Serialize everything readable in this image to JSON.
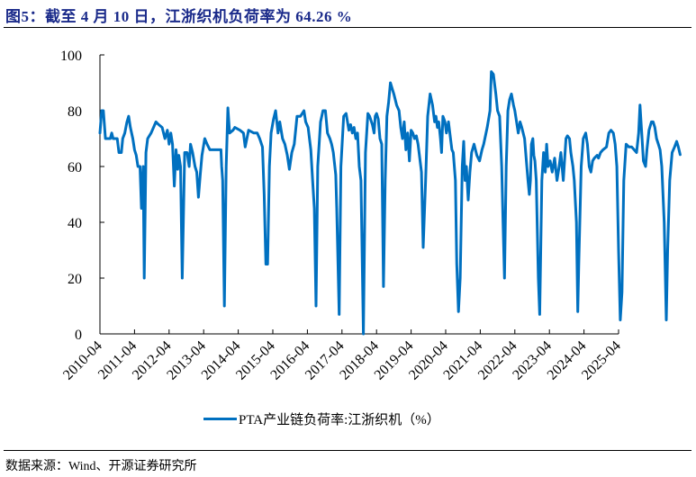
{
  "header": {
    "title": "图5：截至 4 月 10 日，江浙织机负荷率为 64.26 %"
  },
  "footer": {
    "source": "数据来源：Wind、开源证券研究所"
  },
  "legend": {
    "label": "PTA产业链负荷率:江浙织机（%）",
    "color": "#0070C0"
  },
  "chart_data": {
    "type": "line",
    "title": "截至 4 月 10 日，江浙织机负荷率为 64.26 %",
    "xlabel": "",
    "ylabel": "",
    "ylim": [
      0,
      100
    ],
    "yticks": [
      0,
      20,
      40,
      60,
      80,
      100
    ],
    "xticks": [
      "2010-04",
      "2011-04",
      "2012-04",
      "2013-04",
      "2014-04",
      "2015-04",
      "2016-04",
      "2017-04",
      "2018-04",
      "2019-04",
      "2020-04",
      "2021-04",
      "2022-04",
      "2023-04",
      "2024-04",
      "2025-04"
    ],
    "grid": false,
    "legend_position": "bottom",
    "series": [
      {
        "name": "PTA产业链负荷率:江浙织机（%）",
        "color": "#0070C0",
        "x_unit": "years since 2010-04",
        "points": [
          [
            0.0,
            72
          ],
          [
            0.05,
            80
          ],
          [
            0.1,
            80
          ],
          [
            0.16,
            70
          ],
          [
            0.3,
            70
          ],
          [
            0.34,
            72
          ],
          [
            0.38,
            70
          ],
          [
            0.5,
            70
          ],
          [
            0.55,
            65
          ],
          [
            0.62,
            65
          ],
          [
            0.66,
            70
          ],
          [
            0.72,
            72
          ],
          [
            0.78,
            76
          ],
          [
            0.83,
            78
          ],
          [
            0.88,
            74
          ],
          [
            0.95,
            70
          ],
          [
            1.0,
            66
          ],
          [
            1.05,
            64
          ],
          [
            1.1,
            60
          ],
          [
            1.16,
            60
          ],
          [
            1.2,
            45
          ],
          [
            1.25,
            60
          ],
          [
            1.28,
            20
          ],
          [
            1.33,
            65
          ],
          [
            1.38,
            70
          ],
          [
            1.48,
            72
          ],
          [
            1.55,
            74
          ],
          [
            1.62,
            76
          ],
          [
            1.7,
            75
          ],
          [
            1.8,
            74
          ],
          [
            1.88,
            70
          ],
          [
            1.95,
            73
          ],
          [
            2.0,
            68
          ],
          [
            2.05,
            72
          ],
          [
            2.1,
            68
          ],
          [
            2.15,
            53
          ],
          [
            2.2,
            66
          ],
          [
            2.25,
            59
          ],
          [
            2.28,
            64
          ],
          [
            2.33,
            60
          ],
          [
            2.38,
            20
          ],
          [
            2.45,
            65
          ],
          [
            2.52,
            65
          ],
          [
            2.58,
            60
          ],
          [
            2.62,
            68
          ],
          [
            2.68,
            65
          ],
          [
            2.75,
            60
          ],
          [
            2.8,
            58
          ],
          [
            2.85,
            49
          ],
          [
            2.9,
            57
          ],
          [
            2.95,
            64
          ],
          [
            3.03,
            70
          ],
          [
            3.1,
            68
          ],
          [
            3.18,
            66
          ],
          [
            3.4,
            66
          ],
          [
            3.5,
            66
          ],
          [
            3.52,
            60
          ],
          [
            3.55,
            55
          ],
          [
            3.6,
            10
          ],
          [
            3.65,
            60
          ],
          [
            3.7,
            81
          ],
          [
            3.75,
            72
          ],
          [
            3.85,
            73
          ],
          [
            3.9,
            74
          ],
          [
            4.05,
            73
          ],
          [
            4.15,
            72
          ],
          [
            4.2,
            67
          ],
          [
            4.25,
            70
          ],
          [
            4.3,
            73
          ],
          [
            4.45,
            72
          ],
          [
            4.55,
            72
          ],
          [
            4.62,
            70
          ],
          [
            4.7,
            67
          ],
          [
            4.75,
            50
          ],
          [
            4.8,
            25
          ],
          [
            4.85,
            25
          ],
          [
            4.9,
            60
          ],
          [
            4.95,
            72
          ],
          [
            5.02,
            77
          ],
          [
            5.08,
            80
          ],
          [
            5.15,
            72
          ],
          [
            5.2,
            76
          ],
          [
            5.28,
            70
          ],
          [
            5.35,
            68
          ],
          [
            5.42,
            64
          ],
          [
            5.48,
            59
          ],
          [
            5.55,
            65
          ],
          [
            5.62,
            68
          ],
          [
            5.7,
            78
          ],
          [
            5.8,
            78
          ],
          [
            5.9,
            80
          ],
          [
            5.95,
            76
          ],
          [
            6.02,
            74
          ],
          [
            6.1,
            66
          ],
          [
            6.15,
            55
          ],
          [
            6.2,
            45
          ],
          [
            6.25,
            10
          ],
          [
            6.3,
            60
          ],
          [
            6.38,
            76
          ],
          [
            6.45,
            80
          ],
          [
            6.52,
            80
          ],
          [
            6.58,
            72
          ],
          [
            6.65,
            70
          ],
          [
            6.7,
            68
          ],
          [
            6.75,
            65
          ],
          [
            6.82,
            57
          ],
          [
            6.85,
            45
          ],
          [
            6.92,
            7
          ],
          [
            6.97,
            60
          ],
          [
            7.05,
            78
          ],
          [
            7.12,
            79
          ],
          [
            7.2,
            73
          ],
          [
            7.25,
            75
          ],
          [
            7.3,
            72
          ],
          [
            7.35,
            74
          ],
          [
            7.4,
            70
          ],
          [
            7.45,
            72
          ],
          [
            7.5,
            60
          ],
          [
            7.55,
            55
          ],
          [
            7.62,
            0
          ],
          [
            7.68,
            65
          ],
          [
            7.75,
            79
          ],
          [
            7.8,
            78
          ],
          [
            7.88,
            75
          ],
          [
            7.93,
            72
          ],
          [
            7.96,
            78
          ],
          [
            8.0,
            79
          ],
          [
            8.05,
            77
          ],
          [
            8.1,
            70
          ],
          [
            8.15,
            68
          ],
          [
            8.2,
            17
          ],
          [
            8.25,
            55
          ],
          [
            8.3,
            78
          ],
          [
            8.35,
            83
          ],
          [
            8.4,
            90
          ],
          [
            8.5,
            86
          ],
          [
            8.58,
            82
          ],
          [
            8.65,
            80
          ],
          [
            8.7,
            74
          ],
          [
            8.75,
            70
          ],
          [
            8.8,
            76
          ],
          [
            8.85,
            66
          ],
          [
            8.9,
            72
          ],
          [
            8.95,
            62
          ],
          [
            9.0,
            73
          ],
          [
            9.05,
            72
          ],
          [
            9.1,
            70
          ],
          [
            9.15,
            71
          ],
          [
            9.2,
            68
          ],
          [
            9.25,
            63
          ],
          [
            9.3,
            58
          ],
          [
            9.35,
            31
          ],
          [
            9.42,
            55
          ],
          [
            9.48,
            78
          ],
          [
            9.55,
            86
          ],
          [
            9.62,
            82
          ],
          [
            9.68,
            76
          ],
          [
            9.72,
            78
          ],
          [
            9.76,
            74
          ],
          [
            9.8,
            76
          ],
          [
            9.85,
            70
          ],
          [
            9.88,
            65
          ],
          [
            9.92,
            78
          ],
          [
            9.98,
            76
          ],
          [
            10.02,
            72
          ],
          [
            10.08,
            76
          ],
          [
            10.12,
            72
          ],
          [
            10.18,
            66
          ],
          [
            10.22,
            65
          ],
          [
            10.28,
            55
          ],
          [
            10.32,
            25
          ],
          [
            10.37,
            8
          ],
          [
            10.42,
            20
          ],
          [
            10.48,
            60
          ],
          [
            10.52,
            69
          ],
          [
            10.56,
            55
          ],
          [
            10.6,
            60
          ],
          [
            10.65,
            48
          ],
          [
            10.7,
            58
          ],
          [
            10.75,
            65
          ],
          [
            10.82,
            68
          ],
          [
            10.9,
            64
          ],
          [
            10.98,
            62
          ],
          [
            11.05,
            66
          ],
          [
            11.1,
            68
          ],
          [
            11.2,
            74
          ],
          [
            11.28,
            80
          ],
          [
            11.32,
            94
          ],
          [
            11.38,
            93
          ],
          [
            11.45,
            86
          ],
          [
            11.5,
            80
          ],
          [
            11.56,
            78
          ],
          [
            11.62,
            60
          ],
          [
            11.66,
            40
          ],
          [
            11.7,
            20
          ],
          [
            11.75,
            60
          ],
          [
            11.8,
            80
          ],
          [
            11.85,
            84
          ],
          [
            11.9,
            86
          ],
          [
            11.96,
            82
          ],
          [
            12.0,
            80
          ],
          [
            12.05,
            76
          ],
          [
            12.1,
            72
          ],
          [
            12.15,
            76
          ],
          [
            12.2,
            74
          ],
          [
            12.28,
            70
          ],
          [
            12.32,
            64
          ],
          [
            12.38,
            55
          ],
          [
            12.42,
            50
          ],
          [
            12.45,
            55
          ],
          [
            12.48,
            68
          ],
          [
            12.52,
            70
          ],
          [
            12.55,
            64
          ],
          [
            12.58,
            62
          ],
          [
            12.62,
            55
          ],
          [
            12.68,
            20
          ],
          [
            12.72,
            7
          ],
          [
            12.78,
            55
          ],
          [
            12.83,
            65
          ],
          [
            12.88,
            58
          ],
          [
            12.92,
            68
          ],
          [
            12.96,
            60
          ],
          [
            13.02,
            62
          ],
          [
            13.08,
            58
          ],
          [
            13.15,
            63
          ],
          [
            13.22,
            55
          ],
          [
            13.28,
            60
          ],
          [
            13.33,
            65
          ],
          [
            13.4,
            55
          ],
          [
            13.48,
            70
          ],
          [
            13.52,
            71
          ],
          [
            13.58,
            70
          ],
          [
            13.62,
            65
          ],
          [
            13.68,
            60
          ],
          [
            13.72,
            55
          ],
          [
            13.78,
            40
          ],
          [
            13.82,
            8
          ],
          [
            13.85,
            25
          ],
          [
            13.92,
            60
          ],
          [
            13.98,
            70
          ],
          [
            14.05,
            72
          ],
          [
            14.1,
            68
          ],
          [
            14.15,
            60
          ],
          [
            14.2,
            58
          ],
          [
            14.25,
            62
          ],
          [
            14.3,
            63
          ],
          [
            14.38,
            64
          ],
          [
            14.42,
            63
          ],
          [
            14.48,
            65
          ],
          [
            14.55,
            66
          ],
          [
            14.65,
            67
          ],
          [
            14.72,
            72
          ],
          [
            14.78,
            73
          ],
          [
            14.85,
            72
          ],
          [
            14.9,
            68
          ],
          [
            14.95,
            60
          ],
          [
            15.0,
            30
          ],
          [
            15.05,
            5
          ],
          [
            15.1,
            15
          ],
          [
            15.15,
            55
          ],
          [
            15.22,
            68
          ],
          [
            15.3,
            67
          ],
          [
            15.38,
            67
          ],
          [
            15.45,
            66
          ],
          [
            15.52,
            65
          ],
          [
            15.58,
            72
          ],
          [
            15.62,
            82
          ],
          [
            15.68,
            70
          ],
          [
            15.72,
            62
          ],
          [
            15.78,
            60
          ],
          [
            15.82,
            66
          ],
          [
            15.88,
            73
          ],
          [
            15.95,
            76
          ],
          [
            16.0,
            76
          ],
          [
            16.05,
            74
          ],
          [
            16.1,
            70
          ],
          [
            16.15,
            68
          ],
          [
            16.2,
            66
          ],
          [
            16.25,
            60
          ],
          [
            16.32,
            40
          ],
          [
            16.38,
            5
          ],
          [
            16.42,
            30
          ],
          [
            16.48,
            55
          ],
          [
            16.55,
            65
          ],
          [
            16.62,
            67
          ],
          [
            16.68,
            69
          ],
          [
            16.73,
            67
          ],
          [
            16.78,
            64.26
          ]
        ]
      }
    ]
  }
}
